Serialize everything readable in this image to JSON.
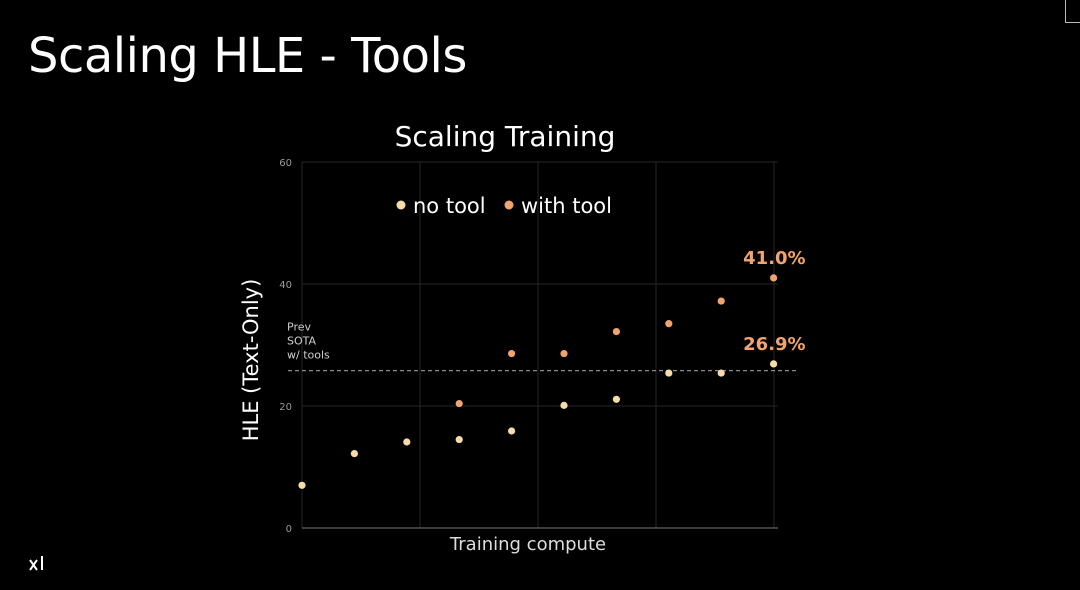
{
  "slide": {
    "title": "Scaling HLE - Tools",
    "logo_text": "xI"
  },
  "colors": {
    "background": "#000000",
    "no_tool": "#f8dca8",
    "with_tool": "#f2a46e",
    "grid": "#262626",
    "reference_line": "#8a8a8a"
  },
  "chart_data": {
    "type": "scatter",
    "title": "Scaling Training",
    "xlabel": "Training compute",
    "ylabel": "HLE (Text-Only)",
    "ylim": [
      0,
      60
    ],
    "yticks": [
      0,
      20,
      40,
      60
    ],
    "grid": true,
    "legend_position": "top-center",
    "x_axis_unlabeled": true,
    "series": [
      {
        "name": "no tool",
        "color": "#f8dca8",
        "points": [
          {
            "x": 0,
            "y": 7.0
          },
          {
            "x": 1,
            "y": 12.2
          },
          {
            "x": 2,
            "y": 14.1
          },
          {
            "x": 3,
            "y": 14.5
          },
          {
            "x": 4,
            "y": 15.9
          },
          {
            "x": 5,
            "y": 20.1
          },
          {
            "x": 6,
            "y": 21.1
          },
          {
            "x": 7,
            "y": 25.4
          },
          {
            "x": 8,
            "y": 25.4
          },
          {
            "x": 9,
            "y": 26.9
          }
        ]
      },
      {
        "name": "with tool",
        "color": "#f2a46e",
        "points": [
          {
            "x": 3,
            "y": 20.4
          },
          {
            "x": 4,
            "y": 28.6
          },
          {
            "x": 5,
            "y": 28.6
          },
          {
            "x": 6,
            "y": 32.2
          },
          {
            "x": 7,
            "y": 33.5
          },
          {
            "x": 8,
            "y": 37.2
          },
          {
            "x": 9,
            "y": 41.0
          }
        ]
      }
    ],
    "reference_line": {
      "y": 25.8,
      "label_lines": [
        "Prev",
        "SOTA",
        "w/ tools"
      ],
      "style": "dashed"
    },
    "annotations": [
      {
        "text": "41.0%",
        "series": "with tool",
        "x": 9,
        "y": 41.0
      },
      {
        "text": "26.9%",
        "series": "no tool",
        "x": 9,
        "y": 26.9
      }
    ]
  }
}
